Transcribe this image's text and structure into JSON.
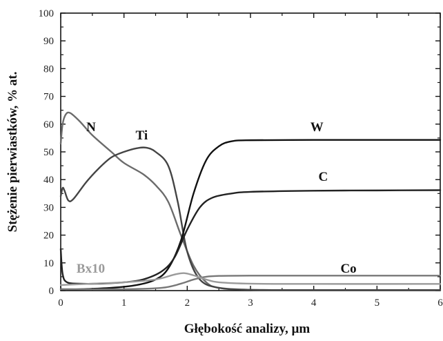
{
  "chart_data": {
    "type": "line",
    "title": "",
    "xlabel": "Głębokość analizy, µm",
    "ylabel": "Stężenie pierwiastków, % at.",
    "xlim": [
      0,
      6
    ],
    "ylim": [
      0,
      100
    ],
    "x_ticks": [
      "0",
      "1",
      "2",
      "3",
      "4",
      "5",
      "6"
    ],
    "y_ticks": [
      "0",
      "10",
      "20",
      "30",
      "40",
      "50",
      "60",
      "70",
      "80",
      "90",
      "100"
    ],
    "grid": false,
    "legend": "inline labels",
    "series": [
      {
        "name": "N",
        "color": "#6b6b6b",
        "points": [
          [
            0,
            53
          ],
          [
            0.03,
            60
          ],
          [
            0.08,
            63.5
          ],
          [
            0.15,
            64
          ],
          [
            0.3,
            61
          ],
          [
            0.5,
            56
          ],
          [
            0.8,
            50
          ],
          [
            1.0,
            46
          ],
          [
            1.3,
            42
          ],
          [
            1.5,
            38
          ],
          [
            1.7,
            32
          ],
          [
            1.9,
            20
          ],
          [
            2.1,
            9
          ],
          [
            2.3,
            3
          ],
          [
            2.5,
            1
          ],
          [
            3.0,
            0.3
          ],
          [
            4.0,
            0.2
          ],
          [
            6.0,
            0.2
          ]
        ]
      },
      {
        "name": "Ti",
        "color": "#444444",
        "points": [
          [
            0,
            34
          ],
          [
            0.03,
            37
          ],
          [
            0.06,
            36
          ],
          [
            0.12,
            32.5
          ],
          [
            0.2,
            33
          ],
          [
            0.4,
            39
          ],
          [
            0.6,
            44
          ],
          [
            0.8,
            48
          ],
          [
            1.0,
            50
          ],
          [
            1.2,
            51.3
          ],
          [
            1.35,
            51.5
          ],
          [
            1.5,
            50
          ],
          [
            1.7,
            45
          ],
          [
            1.85,
            32
          ],
          [
            2.0,
            14
          ],
          [
            2.2,
            4
          ],
          [
            2.5,
            1
          ],
          [
            3.0,
            0.3
          ],
          [
            4.0,
            0.2
          ],
          [
            6.0,
            0.2
          ]
        ]
      },
      {
        "name": "W",
        "color": "#111111",
        "points": [
          [
            0,
            0.5
          ],
          [
            0.3,
            0.5
          ],
          [
            0.8,
            1
          ],
          [
            1.2,
            2
          ],
          [
            1.5,
            4
          ],
          [
            1.7,
            8
          ],
          [
            1.9,
            18
          ],
          [
            2.1,
            35
          ],
          [
            2.3,
            47
          ],
          [
            2.5,
            52
          ],
          [
            2.7,
            53.8
          ],
          [
            3.0,
            54.2
          ],
          [
            4.0,
            54.3
          ],
          [
            5.0,
            54.3
          ],
          [
            6.0,
            54.3
          ]
        ]
      },
      {
        "name": "C",
        "color": "#222222",
        "points": [
          [
            0,
            15
          ],
          [
            0.03,
            6
          ],
          [
            0.1,
            3
          ],
          [
            0.3,
            2.5
          ],
          [
            0.6,
            2.5
          ],
          [
            1.0,
            3
          ],
          [
            1.3,
            4
          ],
          [
            1.6,
            7
          ],
          [
            1.8,
            12
          ],
          [
            2.0,
            22
          ],
          [
            2.2,
            30
          ],
          [
            2.4,
            33.5
          ],
          [
            2.7,
            35
          ],
          [
            3.0,
            35.6
          ],
          [
            4.0,
            36
          ],
          [
            5.0,
            36.1
          ],
          [
            6.0,
            36.2
          ]
        ]
      },
      {
        "name": "Co",
        "color": "#777777",
        "points": [
          [
            0,
            0.5
          ],
          [
            1.0,
            0.5
          ],
          [
            1.6,
            1
          ],
          [
            1.9,
            2.5
          ],
          [
            2.1,
            4
          ],
          [
            2.3,
            5
          ],
          [
            2.5,
            5.3
          ],
          [
            3.0,
            5.4
          ],
          [
            4.0,
            5.4
          ],
          [
            6.0,
            5.4
          ]
        ]
      },
      {
        "name": "Bx10",
        "color": "#9a9a9a",
        "points": [
          [
            0,
            2
          ],
          [
            0.5,
            2.5
          ],
          [
            1.0,
            3
          ],
          [
            1.5,
            4
          ],
          [
            1.8,
            5.8
          ],
          [
            1.95,
            6.3
          ],
          [
            2.1,
            5.5
          ],
          [
            2.3,
            4
          ],
          [
            2.5,
            3
          ],
          [
            3.0,
            2.5
          ],
          [
            4.0,
            2.4
          ],
          [
            6.0,
            2.4
          ]
        ]
      }
    ],
    "labels": {
      "N": "N",
      "Ti": "Ti",
      "W": "W",
      "C": "C",
      "Co": "Co",
      "Bx10": "Bx10"
    }
  }
}
